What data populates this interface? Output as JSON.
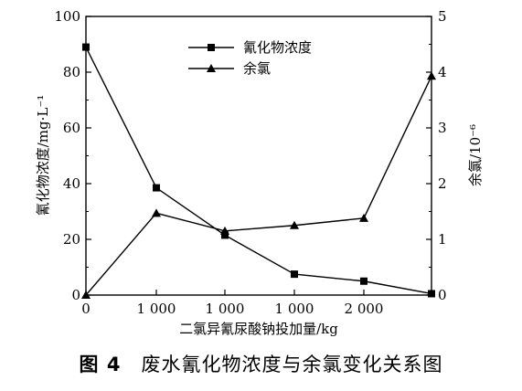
{
  "chart_data": {
    "type": "line",
    "categories": [
      "0",
      "1 000",
      "1 000",
      "1 000",
      "2 000",
      ""
    ],
    "xlabel": "二氯异氰尿酸钠投加量/kg",
    "ylabel": "氰化物浓度/mg·L⁻¹",
    "y2label": "余氯/10⁻⁶",
    "ylim": [
      0,
      100
    ],
    "y2lim": [
      0,
      5
    ],
    "yticks": [
      0,
      20,
      40,
      60,
      80,
      100
    ],
    "y2ticks": [
      0,
      1,
      2,
      3,
      4,
      5
    ],
    "grid": false,
    "legend_position": "top-center",
    "series": [
      {
        "name": "氰化物浓度",
        "axis": "left",
        "marker": "square",
        "values": [
          89,
          38.5,
          21.5,
          7.5,
          5,
          0.5
        ]
      },
      {
        "name": "余氯",
        "axis": "right",
        "marker": "triangle",
        "values": [
          0,
          1.47,
          1.15,
          1.25,
          1.38,
          3.93
        ]
      }
    ]
  },
  "caption": {
    "label": "图 4",
    "text": "废水氰化物浓度与余氯变化关系图"
  }
}
